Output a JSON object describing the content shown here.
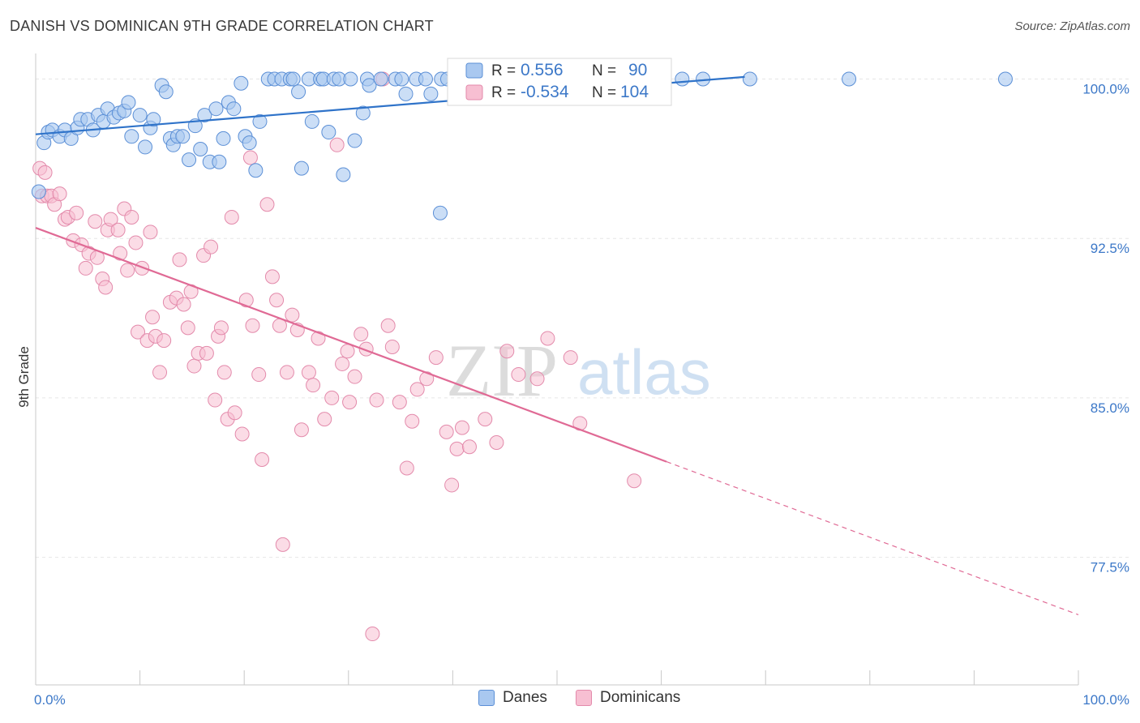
{
  "header": {
    "title": "DANISH VS DOMINICAN 9TH GRADE CORRELATION CHART",
    "source": "Source: ZipAtlas.com"
  },
  "watermark": {
    "zip": "ZIP",
    "atlas": "atlas"
  },
  "legend_top": {
    "rows": [
      {
        "r_label": "R =",
        "r_value": "0.556",
        "n_label": "N =",
        "n_value": "90"
      },
      {
        "r_label": "R =",
        "r_value": "-0.534",
        "n_label": "N =",
        "n_value": "104"
      }
    ]
  },
  "legend_bottom": {
    "items": [
      "Danes",
      "Dominicans"
    ]
  },
  "colors": {
    "danes_fill": "#a9c8f0",
    "danes_stroke": "#5b8fd6",
    "danes_line": "#2f73c9",
    "dominicans_fill": "#f7bfd2",
    "dominicans_stroke": "#e38aab",
    "dominicans_line": "#e06a95",
    "tick_label": "#3c78c8",
    "grid": "#e6e6e6"
  },
  "chart_data": {
    "type": "scatter",
    "title": "DANISH VS DOMINICAN 9TH GRADE CORRELATION CHART",
    "xlabel": "",
    "ylabel": "9th Grade",
    "xlim": [
      0,
      100
    ],
    "ylim": [
      71.5,
      101.2
    ],
    "x_tick_labels": [
      "0.0%",
      "100.0%"
    ],
    "y_ticks": [
      77.5,
      85.0,
      92.5,
      100.0
    ],
    "y_tick_labels": [
      "77.5%",
      "85.0%",
      "92.5%",
      "100.0%"
    ],
    "grid": true,
    "legend_position": "top-center",
    "series": [
      {
        "name": "Danes",
        "R": 0.556,
        "N": 90,
        "trend": {
          "x": [
            0,
            68
          ],
          "y": [
            97.4,
            100.1
          ]
        },
        "points": [
          [
            0.3,
            94.7
          ],
          [
            0.8,
            97
          ],
          [
            1.2,
            97.5
          ],
          [
            1.6,
            97.6
          ],
          [
            2.3,
            97.3
          ],
          [
            2.8,
            97.6
          ],
          [
            3.4,
            97.2
          ],
          [
            4,
            97.7
          ],
          [
            4.3,
            98.1
          ],
          [
            5,
            98.1
          ],
          [
            5.5,
            97.6
          ],
          [
            6,
            98.3
          ],
          [
            6.5,
            98
          ],
          [
            6.9,
            98.6
          ],
          [
            7.5,
            98.2
          ],
          [
            8,
            98.4
          ],
          [
            8.5,
            98.5
          ],
          [
            8.9,
            98.9
          ],
          [
            9.2,
            97.3
          ],
          [
            10,
            98.3
          ],
          [
            10.5,
            96.8
          ],
          [
            11,
            97.7
          ],
          [
            11.3,
            98.1
          ],
          [
            12.1,
            99.7
          ],
          [
            12.5,
            99.4
          ],
          [
            12.9,
            97.2
          ],
          [
            13.2,
            96.9
          ],
          [
            13.6,
            97.3
          ],
          [
            14.1,
            97.3
          ],
          [
            14.7,
            96.2
          ],
          [
            15.3,
            97.8
          ],
          [
            15.8,
            96.7
          ],
          [
            16.2,
            98.3
          ],
          [
            16.7,
            96.1
          ],
          [
            17.3,
            98.6
          ],
          [
            17.6,
            96.1
          ],
          [
            18,
            97.2
          ],
          [
            18.5,
            98.9
          ],
          [
            19,
            98.6
          ],
          [
            19.7,
            99.8
          ],
          [
            20.1,
            97.3
          ],
          [
            20.5,
            97
          ],
          [
            21.1,
            95.7
          ],
          [
            21.5,
            98
          ],
          [
            22.3,
            100
          ],
          [
            22.9,
            100
          ],
          [
            23.6,
            100
          ],
          [
            24.4,
            100
          ],
          [
            24.7,
            100
          ],
          [
            25.2,
            99.4
          ],
          [
            25.5,
            95.8
          ],
          [
            26.2,
            100
          ],
          [
            26.5,
            98
          ],
          [
            27.3,
            100
          ],
          [
            27.6,
            100
          ],
          [
            28.1,
            97.5
          ],
          [
            28.6,
            100
          ],
          [
            29.1,
            100
          ],
          [
            29.5,
            95.5
          ],
          [
            30.2,
            100
          ],
          [
            30.6,
            97.1
          ],
          [
            31.4,
            98.4
          ],
          [
            31.8,
            100
          ],
          [
            32,
            99.7
          ],
          [
            33.1,
            100
          ],
          [
            34.5,
            100
          ],
          [
            35.1,
            100
          ],
          [
            35.5,
            99.3
          ],
          [
            36.5,
            100
          ],
          [
            37.4,
            100
          ],
          [
            37.9,
            99.3
          ],
          [
            38.8,
            93.7
          ],
          [
            38.9,
            100
          ],
          [
            39.5,
            100
          ],
          [
            41,
            100
          ],
          [
            42.5,
            100
          ],
          [
            44,
            100
          ],
          [
            45.5,
            100
          ],
          [
            47,
            100
          ],
          [
            48.5,
            100
          ],
          [
            50,
            100
          ],
          [
            51.5,
            100
          ],
          [
            53,
            100
          ],
          [
            55,
            100
          ],
          [
            58,
            100
          ],
          [
            62,
            100
          ],
          [
            64,
            100
          ],
          [
            68.5,
            100
          ],
          [
            78,
            100
          ],
          [
            93,
            100
          ]
        ]
      },
      {
        "name": "Dominicans",
        "R": -0.534,
        "N": 104,
        "trend": {
          "x": [
            0,
            60.5
          ],
          "y": [
            93,
            82
          ]
        },
        "trend_extension": {
          "x": [
            60.5,
            100
          ],
          "y": [
            82,
            74.8
          ]
        },
        "points": [
          [
            0.4,
            95.8
          ],
          [
            0.6,
            94.5
          ],
          [
            0.9,
            95.6
          ],
          [
            1.1,
            94.5
          ],
          [
            1.5,
            94.5
          ],
          [
            1.8,
            94.1
          ],
          [
            2.3,
            94.6
          ],
          [
            2.8,
            93.4
          ],
          [
            3.1,
            93.5
          ],
          [
            3.6,
            92.4
          ],
          [
            3.9,
            93.7
          ],
          [
            4.4,
            92.2
          ],
          [
            4.8,
            91.1
          ],
          [
            5.1,
            91.8
          ],
          [
            5.7,
            93.3
          ],
          [
            5.9,
            91.6
          ],
          [
            6.4,
            90.6
          ],
          [
            6.7,
            90.2
          ],
          [
            6.9,
            92.9
          ],
          [
            7.2,
            93.4
          ],
          [
            7.9,
            92.9
          ],
          [
            8.1,
            91.8
          ],
          [
            8.5,
            93.9
          ],
          [
            8.8,
            91
          ],
          [
            9.2,
            93.5
          ],
          [
            9.6,
            92.3
          ],
          [
            9.8,
            88.1
          ],
          [
            10.2,
            91.1
          ],
          [
            10.7,
            87.7
          ],
          [
            11,
            92.8
          ],
          [
            11.2,
            88.8
          ],
          [
            11.5,
            87.9
          ],
          [
            11.9,
            86.2
          ],
          [
            12.3,
            87.7
          ],
          [
            12.9,
            89.5
          ],
          [
            13.5,
            89.7
          ],
          [
            13.8,
            91.5
          ],
          [
            14.2,
            89.4
          ],
          [
            14.6,
            88.3
          ],
          [
            14.9,
            90
          ],
          [
            15.2,
            86.5
          ],
          [
            15.6,
            87.1
          ],
          [
            16.1,
            91.7
          ],
          [
            16.4,
            87.1
          ],
          [
            16.8,
            92.1
          ],
          [
            17.2,
            84.9
          ],
          [
            17.5,
            87.9
          ],
          [
            17.8,
            88.3
          ],
          [
            18.1,
            86.2
          ],
          [
            18.4,
            84
          ],
          [
            18.8,
            93.5
          ],
          [
            19.1,
            84.3
          ],
          [
            19.8,
            83.3
          ],
          [
            20.2,
            89.6
          ],
          [
            20.6,
            96.3
          ],
          [
            20.8,
            88.4
          ],
          [
            21.4,
            86.1
          ],
          [
            21.7,
            82.1
          ],
          [
            22.2,
            94.1
          ],
          [
            22.7,
            90.7
          ],
          [
            23.1,
            89.6
          ],
          [
            23.4,
            88.4
          ],
          [
            23.7,
            78.1
          ],
          [
            24.1,
            86.2
          ],
          [
            24.6,
            88.9
          ],
          [
            25.1,
            88.2
          ],
          [
            25.5,
            83.5
          ],
          [
            26.2,
            86.2
          ],
          [
            26.6,
            85.6
          ],
          [
            27.1,
            87.8
          ],
          [
            27.7,
            84
          ],
          [
            28.4,
            85
          ],
          [
            28.9,
            96.9
          ],
          [
            29.4,
            86.6
          ],
          [
            29.9,
            87.2
          ],
          [
            30.1,
            84.8
          ],
          [
            30.6,
            86
          ],
          [
            31.2,
            88
          ],
          [
            31.7,
            87.3
          ],
          [
            32.3,
            73.9
          ],
          [
            32.7,
            84.9
          ],
          [
            33.3,
            100
          ],
          [
            33.8,
            88.4
          ],
          [
            34.2,
            87.4
          ],
          [
            34.9,
            84.8
          ],
          [
            35.6,
            81.7
          ],
          [
            36.1,
            83.9
          ],
          [
            36.6,
            85.4
          ],
          [
            37.5,
            85.9
          ],
          [
            38.4,
            86.9
          ],
          [
            39.4,
            83.4
          ],
          [
            39.9,
            80.9
          ],
          [
            40.4,
            82.6
          ],
          [
            40.9,
            83.6
          ],
          [
            41.6,
            82.7
          ],
          [
            43.1,
            84
          ],
          [
            44.2,
            82.9
          ],
          [
            45.2,
            87.2
          ],
          [
            46.3,
            86.1
          ],
          [
            48.1,
            85.9
          ],
          [
            49.1,
            87.8
          ],
          [
            51.3,
            86.9
          ],
          [
            52.2,
            83.8
          ],
          [
            57.4,
            81.1
          ]
        ]
      }
    ]
  }
}
